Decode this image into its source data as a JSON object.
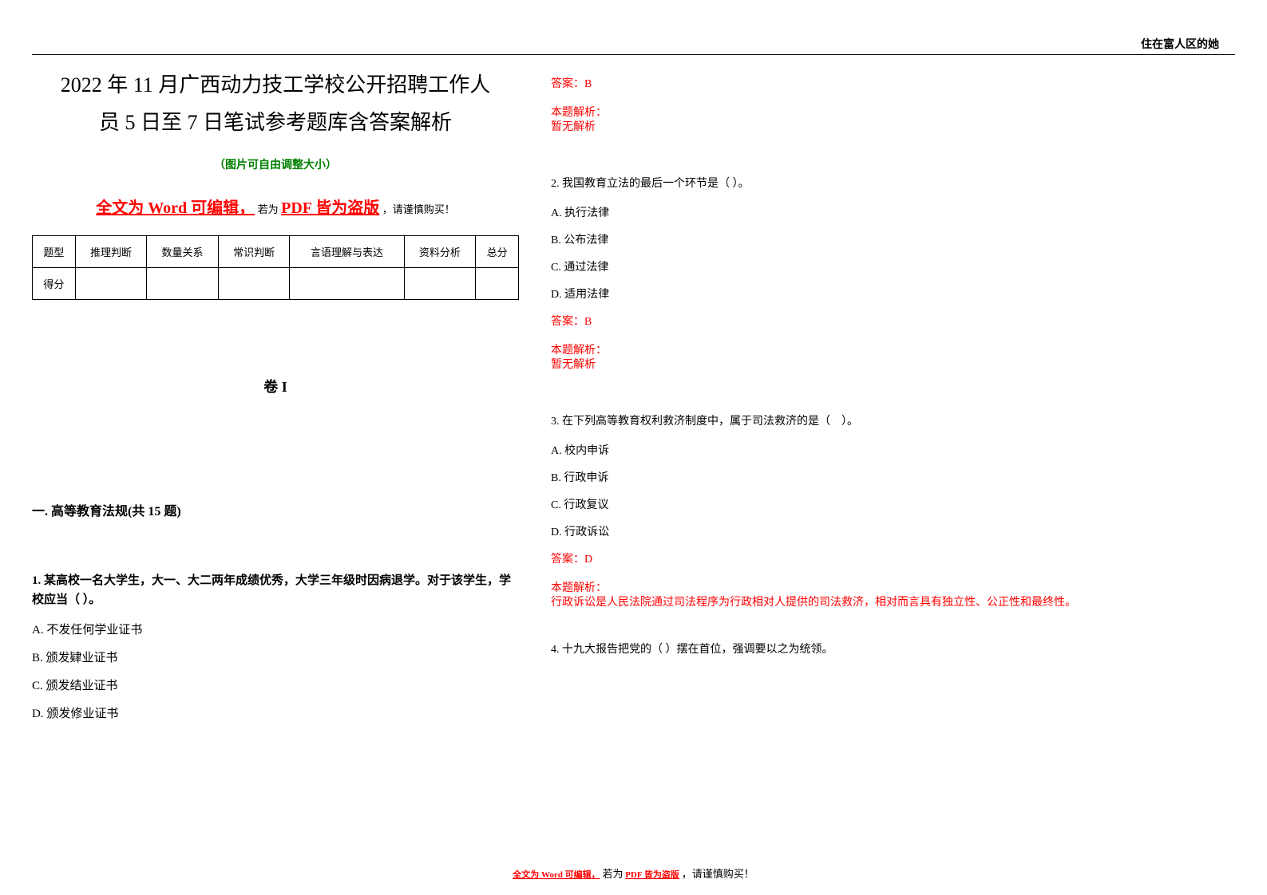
{
  "topRight": "住在富人区的她",
  "title": {
    "line1": "2022 年 11 月广西动力技工学校公开招聘工作人",
    "line2": "员 5 日至 7 日笔试参考题库含答案解析"
  },
  "subtitle": "（图片可自由调整大小）",
  "warning": {
    "part1": "全文为 Word 可编辑，",
    "part2": "若为",
    "part3": "PDF 皆为盗版",
    "part4": "，请谨慎购买！"
  },
  "table": {
    "headers": [
      "题型",
      "推理判断",
      "数量关系",
      "常识判断",
      "言语理解与表达",
      "资料分析",
      "总分"
    ],
    "row2_label": "得分"
  },
  "volumeTitle": "卷 I",
  "sectionTitle": "一. 高等教育法规(共 15 题)",
  "q1": {
    "text": "1. 某高校一名大学生，大一、大二两年成绩优秀，大学三年级时因病退学。对于该学生，学校应当（ ）。",
    "a": "A. 不发任何学业证书",
    "b": "B. 颁发肄业证书",
    "c": "C. 颁发结业证书",
    "d": "D. 颁发修业证书"
  },
  "q1Answer": {
    "answer": "答案：B",
    "analysisLabel": "本题解析：",
    "analysisContent": "暂无解析"
  },
  "q2": {
    "text": "2. 我国教育立法的最后一个环节是（ ）。",
    "a": "A. 执行法律",
    "b": "B. 公布法律",
    "c": "C. 通过法律",
    "d": "D. 适用法律",
    "answer": "答案：B",
    "analysisLabel": "本题解析：",
    "analysisContent": "暂无解析"
  },
  "q3": {
    "text": "3. 在下列高等教育权利救济制度中，属于司法救济的是（　）。",
    "a": "A. 校内申诉",
    "b": "B. 行政申诉",
    "c": "C. 行政复议",
    "d": "D. 行政诉讼",
    "answer": "答案：D",
    "analysisLabel": "本题解析：",
    "analysisContent": "行政诉讼是人民法院通过司法程序为行政相对人提供的司法救济，相对而言具有独立性、公正性和最终性。"
  },
  "q4": {
    "text": "4. 十九大报告把党的（ ）摆在首位，强调要以之为统领。"
  },
  "colors": {
    "red": "#ff0000",
    "green": "#008000",
    "black": "#000000",
    "background": "#ffffff"
  }
}
